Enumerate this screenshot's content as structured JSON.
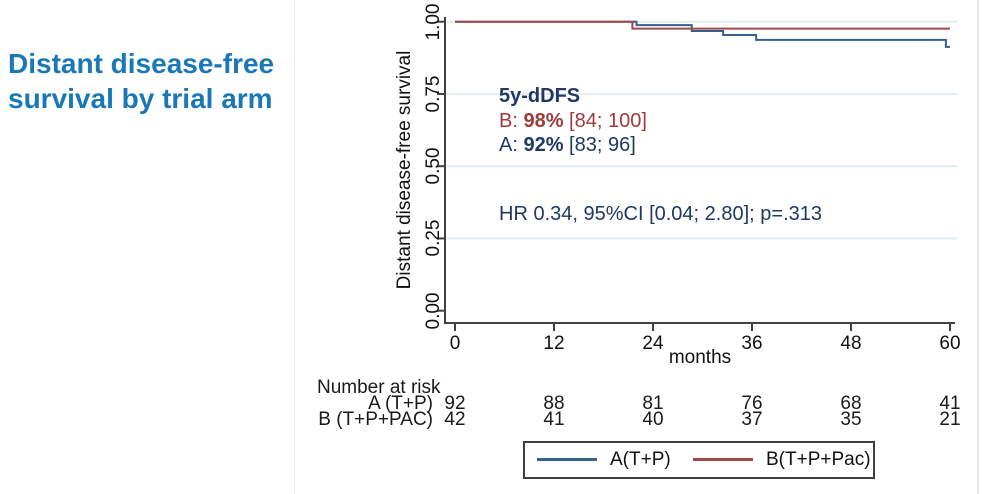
{
  "slide": {
    "title_line1": "Distant disease-free",
    "title_line2": "survival by trial arm",
    "title_color": "#1a78b6"
  },
  "colors": {
    "navy_text": "#1f3864",
    "red_text": "#9e3a3a",
    "axis": "#404040",
    "grid": "#e4eef2",
    "tick_text": "#111111"
  },
  "chart_data": {
    "type": "line",
    "subtype": "kaplan-meier-step",
    "title": "",
    "xlabel": "months",
    "ylabel": "Distant disease-free survival",
    "xlim": [
      0,
      60
    ],
    "ylim": [
      0.0,
      1.0
    ],
    "x_ticks": [
      0,
      12,
      24,
      36,
      48,
      60
    ],
    "y_ticks": [
      "0.00",
      "0.25",
      "0.50",
      "0.75",
      "1.00"
    ],
    "y_tick_values": [
      0,
      0.25,
      0.5,
      0.75,
      1.0
    ],
    "grid": "horizontal gridlines at 0.25/0.50/0.75/1.00",
    "legend_position": "bottom",
    "series": [
      {
        "name": "A(T+P)",
        "color": "#35618c",
        "steps": [
          [
            0,
            1.0
          ],
          [
            22,
            1.0
          ],
          [
            22,
            0.988
          ],
          [
            28.7,
            0.988
          ],
          [
            28.7,
            0.968
          ],
          [
            32.5,
            0.968
          ],
          [
            32.5,
            0.954
          ],
          [
            36.5,
            0.954
          ],
          [
            36.5,
            0.937
          ],
          [
            59.5,
            0.937
          ],
          [
            59.5,
            0.913
          ],
          [
            60,
            0.913
          ]
        ]
      },
      {
        "name": "B(T+P+Pac)",
        "color": "#9e4a4a",
        "steps": [
          [
            0,
            1.0
          ],
          [
            21.5,
            1.0
          ],
          [
            21.5,
            0.976
          ],
          [
            60,
            0.976
          ]
        ]
      }
    ],
    "annotations": {
      "headline": "5y-dDFS",
      "line_b": {
        "prefix": "B: ",
        "value": "98%",
        "suffix": " [84; 100]"
      },
      "line_a": {
        "prefix": "A: ",
        "value": "92%",
        "suffix": " [83; 96]"
      },
      "hr_line": "HR 0.34, 95%CI [0.04; 2.80]; p=.313"
    },
    "risk_table": {
      "title": "Number at risk",
      "time_points": [
        0,
        12,
        24,
        36,
        48,
        60
      ],
      "rows": [
        {
          "label": "A (T+P)",
          "values": [
            "92",
            "88",
            "81",
            "76",
            "68",
            "41"
          ]
        },
        {
          "label": "B (T+P+PAC)",
          "values": [
            "42",
            "41",
            "40",
            "37",
            "35",
            "21"
          ]
        }
      ]
    },
    "legend": [
      {
        "label": "A(T+P)",
        "color": "#35618c"
      },
      {
        "label": "B(T+P+Pac)",
        "color": "#9e4a4a"
      }
    ]
  }
}
